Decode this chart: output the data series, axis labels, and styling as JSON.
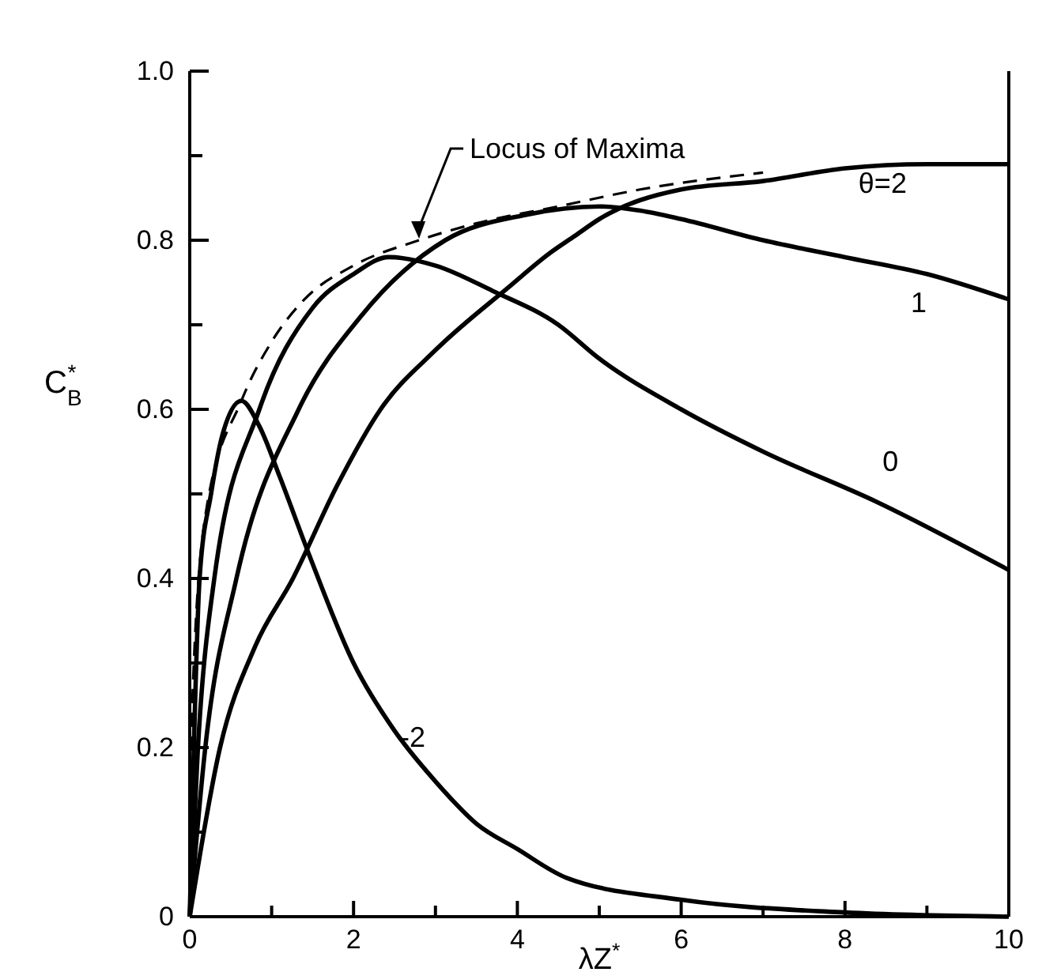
{
  "chart_data": {
    "type": "line",
    "xlabel": "λZ$^{*}$",
    "ylabel": "C$_{B}$$^{*}$",
    "xlim": [
      0,
      10
    ],
    "ylim": [
      0,
      1
    ],
    "xticks": [
      0,
      {
        "value": 1,
        "label": null
      },
      2,
      {
        "value": 3,
        "label": null
      },
      4,
      {
        "value": 5,
        "label": null
      },
      6,
      {
        "value": 7,
        "label": null
      },
      8,
      {
        "value": 9,
        "label": null
      },
      10
    ],
    "yticks": [
      0,
      {
        "value": 0.1,
        "label": null
      },
      0.2,
      {
        "value": 0.3,
        "label": null
      },
      0.4,
      {
        "value": 0.5,
        "label": null
      },
      0.6,
      {
        "value": 0.7,
        "label": null
      },
      0.8,
      {
        "value": 0.9,
        "label": null
      },
      {
        "value": 1,
        "label": "1.0"
      }
    ],
    "grid": false,
    "legend": false,
    "marker": "none",
    "series": [
      {
        "name": "θ=2",
        "color": "#000000",
        "x": [
          0,
          0.37,
          0.8,
          1.26,
          1.8,
          2.33,
          3.0,
          3.9,
          4.4,
          4.7,
          5,
          6,
          7,
          8,
          9,
          10
        ],
        "values": [
          0,
          0.2,
          0.32,
          0.4,
          0.51,
          0.6,
          0.67,
          0.745,
          0.785,
          0.805,
          0.825,
          0.86,
          0.87,
          0.885,
          0.89,
          0.89
        ]
      },
      {
        "name": "1",
        "color": "#000000",
        "x": [
          0,
          0.19,
          0.57,
          1.33,
          2.09,
          3.12,
          4.1,
          5,
          5.5,
          6,
          7,
          8,
          9,
          10
        ],
        "values": [
          0,
          0.2,
          0.4,
          0.6,
          0.71,
          0.8,
          0.83,
          0.84,
          0.835,
          0.825,
          0.8,
          0.78,
          0.76,
          0.73
        ]
      },
      {
        "name": "0",
        "color": "#000000",
        "x": [
          0,
          0.1,
          0.3,
          0.85,
          1.5,
          2,
          2.43,
          3,
          3.7,
          4.5,
          5,
          6,
          7,
          8.4,
          10
        ],
        "values": [
          0,
          0.2,
          0.4,
          0.6,
          0.72,
          0.76,
          0.78,
          0.77,
          0.74,
          0.7,
          0.66,
          0.6,
          0.55,
          0.49,
          0.41
        ]
      },
      {
        "name": "-2",
        "color": "#000000",
        "x": [
          0,
          0.05,
          0.12,
          0.26,
          0.4,
          0.63,
          0.85,
          1.1,
          1.45,
          2,
          2.5,
          3,
          3.5,
          4,
          4.6,
          6,
          8,
          10
        ],
        "values": [
          0,
          0.2,
          0.4,
          0.5,
          0.57,
          0.61,
          0.58,
          0.52,
          0.43,
          0.3,
          0.22,
          0.16,
          0.11,
          0.08,
          0.046,
          0.02,
          0.005,
          0
        ]
      },
      {
        "color": "#000000",
        "line_style": "dashed",
        "x": [
          0,
          0.03,
          0.2,
          0.63,
          1.0,
          1.4,
          2.0,
          2.8,
          3.5,
          4.5,
          5.5,
          7
        ],
        "values": [
          0,
          0.25,
          0.48,
          0.61,
          0.68,
          0.73,
          0.77,
          0.8,
          0.82,
          0.84,
          0.86,
          0.88
        ]
      }
    ],
    "annotations": [
      {
        "text": "Locus of Maxima",
        "x": 2.8,
        "y": 0.8
      }
    ]
  }
}
